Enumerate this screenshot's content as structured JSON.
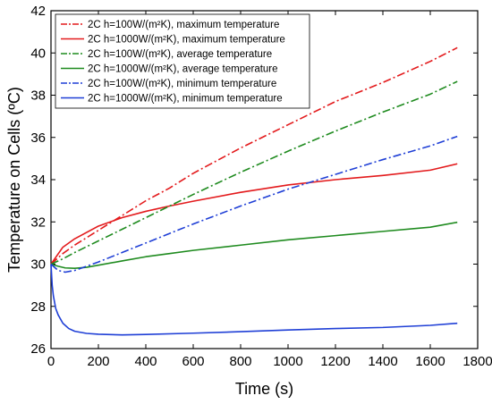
{
  "chart_data": {
    "type": "line",
    "xlabel": "Time (s)",
    "ylabel": "Temperature on Cells (ºC)",
    "xlim": [
      0,
      1800
    ],
    "ylim": [
      26,
      42
    ],
    "xticks": [
      0,
      200,
      400,
      600,
      800,
      1000,
      1200,
      1400,
      1600,
      1800
    ],
    "yticks": [
      26,
      28,
      30,
      32,
      34,
      36,
      38,
      40,
      42
    ],
    "grid": false,
    "legend_position": "top-left",
    "series": [
      {
        "name": "2C h=100W/(m²K),   maximum temperature",
        "color": "#e31a1c",
        "dash": "dashdot",
        "x": [
          0,
          50,
          100,
          200,
          300,
          400,
          500,
          600,
          800,
          1000,
          1200,
          1400,
          1600,
          1714
        ],
        "y": [
          30.0,
          30.5,
          30.9,
          31.6,
          32.3,
          33.0,
          33.6,
          34.3,
          35.5,
          36.6,
          37.7,
          38.6,
          39.6,
          40.25
        ]
      },
      {
        "name": "2C h=1000W/(m²K), maximum temperature",
        "color": "#e31a1c",
        "dash": "solid",
        "x": [
          0,
          50,
          100,
          200,
          300,
          400,
          500,
          600,
          800,
          1000,
          1200,
          1400,
          1600,
          1714
        ],
        "y": [
          30.0,
          30.8,
          31.2,
          31.8,
          32.2,
          32.5,
          32.75,
          32.98,
          33.4,
          33.75,
          34.0,
          34.2,
          34.45,
          34.75
        ]
      },
      {
        "name": "2C h=100W/(m²K),    average temperature",
        "color": "#1f8b1f",
        "dash": "dashdot",
        "x": [
          0,
          50,
          100,
          200,
          300,
          400,
          500,
          600,
          800,
          1000,
          1200,
          1400,
          1600,
          1714
        ],
        "y": [
          30.0,
          30.25,
          30.55,
          31.1,
          31.65,
          32.2,
          32.75,
          33.3,
          34.35,
          35.35,
          36.3,
          37.2,
          38.05,
          38.65
        ]
      },
      {
        "name": "2C h=1000W/(m²K),   average temperature",
        "color": "#1f8b1f",
        "dash": "solid",
        "x": [
          0,
          30,
          60,
          100,
          150,
          200,
          300,
          400,
          500,
          600,
          800,
          1000,
          1200,
          1400,
          1600,
          1714
        ],
        "y": [
          30.0,
          29.9,
          29.82,
          29.8,
          29.85,
          29.95,
          30.15,
          30.35,
          30.5,
          30.65,
          30.9,
          31.15,
          31.35,
          31.55,
          31.75,
          31.98
        ]
      },
      {
        "name": "2C h=100W/(m²K),  minimum temperature",
        "color": "#1f3fd6",
        "dash": "dashdot",
        "x": [
          0,
          30,
          60,
          100,
          150,
          200,
          300,
          400,
          500,
          600,
          800,
          1000,
          1200,
          1400,
          1600,
          1714
        ],
        "y": [
          30.0,
          29.7,
          29.62,
          29.7,
          29.9,
          30.1,
          30.55,
          31.0,
          31.45,
          31.9,
          32.75,
          33.55,
          34.25,
          34.95,
          35.6,
          36.05
        ]
      },
      {
        "name": "2C h=1000W/(m²K), minimum temperature",
        "color": "#1f3fd6",
        "dash": "solid",
        "x": [
          0,
          5,
          10,
          20,
          30,
          50,
          75,
          100,
          150,
          200,
          300,
          400,
          600,
          800,
          1000,
          1200,
          1400,
          1600,
          1714
        ],
        "y": [
          30.0,
          29.0,
          28.5,
          27.9,
          27.6,
          27.2,
          26.95,
          26.82,
          26.72,
          26.68,
          26.65,
          26.67,
          26.73,
          26.8,
          26.88,
          26.95,
          27.0,
          27.1,
          27.2
        ]
      }
    ]
  }
}
